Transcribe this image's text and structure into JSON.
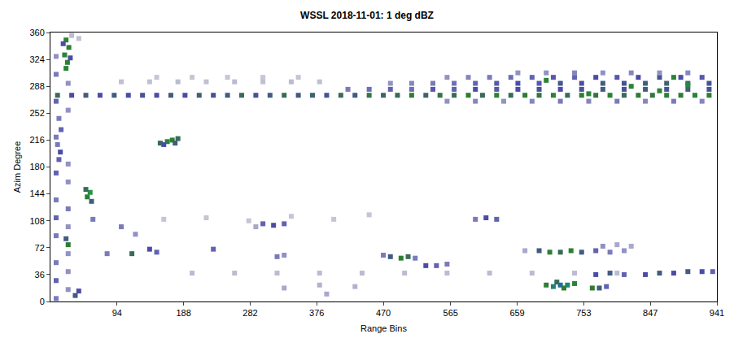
{
  "chart_data": {
    "type": "scatter",
    "title": "WSSL 2018-11-01: 1 deg dBZ",
    "x_label": "Range Bins",
    "y_label": "Azim Degree",
    "xlim": [
      0,
      941
    ],
    "xticks": [
      94,
      188,
      282,
      376,
      470,
      565,
      659,
      753,
      847,
      941
    ],
    "ylim": [
      0,
      360
    ],
    "yticks": [
      0,
      36,
      72,
      108,
      144,
      180,
      216,
      252,
      288,
      324,
      360
    ],
    "zlim": [
      0,
      40
    ],
    "grid": false,
    "marker": "square",
    "points": [
      [
        10,
        276,
        22
      ],
      [
        30,
        276,
        18
      ],
      [
        50,
        276,
        20
      ],
      [
        70,
        276,
        18
      ],
      [
        90,
        276,
        20
      ],
      [
        110,
        276,
        18
      ],
      [
        130,
        276,
        19
      ],
      [
        150,
        276,
        18
      ],
      [
        170,
        276,
        20
      ],
      [
        190,
        276,
        18
      ],
      [
        210,
        276,
        21
      ],
      [
        230,
        276,
        19
      ],
      [
        250,
        276,
        20
      ],
      [
        270,
        276,
        22
      ],
      [
        290,
        276,
        19
      ],
      [
        310,
        276,
        20
      ],
      [
        330,
        276,
        22
      ],
      [
        350,
        276,
        20
      ],
      [
        370,
        276,
        21
      ],
      [
        390,
        276,
        19
      ],
      [
        410,
        276,
        22
      ],
      [
        430,
        276,
        20
      ],
      [
        450,
        276,
        23
      ],
      [
        470,
        276,
        21
      ],
      [
        490,
        276,
        22
      ],
      [
        510,
        276,
        24
      ],
      [
        530,
        276,
        21
      ],
      [
        550,
        276,
        23
      ],
      [
        570,
        276,
        22
      ],
      [
        590,
        276,
        24
      ],
      [
        610,
        276,
        22
      ],
      [
        630,
        276,
        25
      ],
      [
        650,
        276,
        22
      ],
      [
        670,
        276,
        24
      ],
      [
        690,
        276,
        23
      ],
      [
        710,
        276,
        25
      ],
      [
        730,
        276,
        22
      ],
      [
        750,
        276,
        24
      ],
      [
        770,
        276,
        23
      ],
      [
        790,
        276,
        25
      ],
      [
        810,
        276,
        22
      ],
      [
        830,
        276,
        24
      ],
      [
        850,
        276,
        23
      ],
      [
        870,
        276,
        25
      ],
      [
        890,
        276,
        24
      ],
      [
        910,
        276,
        26
      ],
      [
        930,
        276,
        24
      ],
      [
        420,
        284,
        14
      ],
      [
        450,
        284,
        15
      ],
      [
        480,
        284,
        16
      ],
      [
        510,
        284,
        15
      ],
      [
        540,
        284,
        17
      ],
      [
        570,
        284,
        16
      ],
      [
        600,
        284,
        18
      ],
      [
        630,
        284,
        17
      ],
      [
        660,
        284,
        18
      ],
      [
        690,
        284,
        19
      ],
      [
        720,
        284,
        18
      ],
      [
        750,
        284,
        19
      ],
      [
        780,
        284,
        20
      ],
      [
        810,
        284,
        19
      ],
      [
        840,
        284,
        20
      ],
      [
        870,
        284,
        19
      ],
      [
        900,
        284,
        20
      ],
      [
        930,
        284,
        19
      ],
      [
        480,
        292,
        12
      ],
      [
        510,
        292,
        13
      ],
      [
        540,
        292,
        14
      ],
      [
        570,
        292,
        15
      ],
      [
        600,
        292,
        16
      ],
      [
        630,
        292,
        17
      ],
      [
        660,
        292,
        18
      ],
      [
        690,
        292,
        17
      ],
      [
        720,
        292,
        19
      ],
      [
        750,
        292,
        18
      ],
      [
        780,
        292,
        20
      ],
      [
        810,
        292,
        19
      ],
      [
        840,
        292,
        20
      ],
      [
        870,
        292,
        21
      ],
      [
        900,
        292,
        20
      ],
      [
        930,
        292,
        19
      ],
      [
        560,
        300,
        12
      ],
      [
        590,
        300,
        13
      ],
      [
        620,
        300,
        14
      ],
      [
        650,
        300,
        15
      ],
      [
        680,
        300,
        16
      ],
      [
        710,
        300,
        17
      ],
      [
        740,
        300,
        16
      ],
      [
        770,
        300,
        18
      ],
      [
        800,
        300,
        17
      ],
      [
        830,
        300,
        18
      ],
      [
        860,
        300,
        19
      ],
      [
        890,
        300,
        18
      ],
      [
        920,
        300,
        17
      ],
      [
        660,
        306,
        12
      ],
      [
        700,
        306,
        12
      ],
      [
        740,
        306,
        13
      ],
      [
        780,
        306,
        12
      ],
      [
        820,
        306,
        13
      ],
      [
        860,
        306,
        12
      ],
      [
        900,
        306,
        13
      ],
      [
        560,
        268,
        12
      ],
      [
        600,
        268,
        13
      ],
      [
        640,
        268,
        12
      ],
      [
        680,
        268,
        13
      ],
      [
        720,
        268,
        14
      ],
      [
        760,
        268,
        13
      ],
      [
        800,
        268,
        14
      ],
      [
        840,
        268,
        13
      ],
      [
        880,
        268,
        14
      ],
      [
        920,
        268,
        13
      ],
      [
        820,
        288,
        26
      ],
      [
        860,
        282,
        26
      ],
      [
        900,
        290,
        27
      ],
      [
        760,
        278,
        26
      ],
      [
        700,
        296,
        25
      ],
      [
        880,
        300,
        25
      ],
      [
        100,
        294,
        5
      ],
      [
        140,
        294,
        5
      ],
      [
        180,
        294,
        6
      ],
      [
        220,
        294,
        5
      ],
      [
        260,
        294,
        6
      ],
      [
        300,
        294,
        5
      ],
      [
        340,
        294,
        6
      ],
      [
        380,
        294,
        5
      ],
      [
        150,
        300,
        4
      ],
      [
        200,
        300,
        4
      ],
      [
        250,
        300,
        4
      ],
      [
        300,
        300,
        4
      ],
      [
        350,
        300,
        4
      ],
      [
        8,
        4,
        14
      ],
      [
        25,
        16,
        12
      ],
      [
        8,
        28,
        16
      ],
      [
        25,
        40,
        12
      ],
      [
        8,
        52,
        14
      ],
      [
        25,
        64,
        12
      ],
      [
        8,
        88,
        14
      ],
      [
        25,
        100,
        12
      ],
      [
        8,
        112,
        16
      ],
      [
        25,
        124,
        14
      ],
      [
        8,
        136,
        14
      ],
      [
        25,
        160,
        12
      ],
      [
        8,
        172,
        16
      ],
      [
        25,
        184,
        12
      ],
      [
        8,
        220,
        14
      ],
      [
        25,
        256,
        12
      ],
      [
        8,
        268,
        16
      ],
      [
        25,
        292,
        12
      ],
      [
        8,
        304,
        14
      ],
      [
        8,
        328,
        12
      ],
      [
        22,
        312,
        26
      ],
      [
        24,
        320,
        25
      ],
      [
        20,
        330,
        26
      ],
      [
        26,
        340,
        24
      ],
      [
        22,
        350,
        25
      ],
      [
        28,
        326,
        18
      ],
      [
        18,
        345,
        18
      ],
      [
        30,
        356,
        6
      ],
      [
        40,
        352,
        5
      ],
      [
        25,
        76,
        24
      ],
      [
        22,
        84,
        20
      ],
      [
        52,
        140,
        24
      ],
      [
        56,
        146,
        30
      ],
      [
        50,
        150,
        22
      ],
      [
        58,
        134,
        20
      ],
      [
        12,
        190,
        16
      ],
      [
        14,
        200,
        18
      ],
      [
        10,
        210,
        14
      ],
      [
        15,
        230,
        16
      ],
      [
        12,
        245,
        14
      ],
      [
        35,
        8,
        20
      ],
      [
        40,
        14,
        18
      ],
      [
        140,
        70,
        18
      ],
      [
        150,
        66,
        16
      ],
      [
        230,
        70,
        16
      ],
      [
        100,
        100,
        14
      ],
      [
        115,
        64,
        22
      ],
      [
        120,
        90,
        12
      ],
      [
        60,
        110,
        14
      ],
      [
        80,
        64,
        14
      ],
      [
        155,
        212,
        22
      ],
      [
        165,
        214,
        26
      ],
      [
        172,
        216,
        24
      ],
      [
        180,
        218,
        22
      ],
      [
        160,
        210,
        18
      ],
      [
        176,
        212,
        20
      ],
      [
        290,
        100,
        10
      ],
      [
        300,
        104,
        16
      ],
      [
        315,
        102,
        18
      ],
      [
        330,
        104,
        16
      ],
      [
        320,
        60,
        14
      ],
      [
        330,
        62,
        12
      ],
      [
        470,
        62,
        14
      ],
      [
        480,
        60,
        20
      ],
      [
        495,
        58,
        24
      ],
      [
        505,
        60,
        22
      ],
      [
        515,
        58,
        14
      ],
      [
        530,
        48,
        18
      ],
      [
        545,
        48,
        16
      ],
      [
        560,
        50,
        14
      ],
      [
        600,
        110,
        14
      ],
      [
        615,
        112,
        18
      ],
      [
        630,
        110,
        16
      ],
      [
        670,
        68,
        10
      ],
      [
        690,
        68,
        20
      ],
      [
        705,
        66,
        24
      ],
      [
        720,
        66,
        22
      ],
      [
        735,
        68,
        24
      ],
      [
        750,
        66,
        20
      ],
      [
        770,
        68,
        16
      ],
      [
        790,
        66,
        14
      ],
      [
        810,
        68,
        12
      ],
      [
        780,
        74,
        12
      ],
      [
        800,
        76,
        10
      ],
      [
        820,
        74,
        10
      ],
      [
        330,
        18,
        10
      ],
      [
        380,
        22,
        8
      ],
      [
        430,
        20,
        8
      ],
      [
        390,
        10,
        10
      ],
      [
        700,
        22,
        24
      ],
      [
        710,
        20,
        34
      ],
      [
        720,
        22,
        36
      ],
      [
        730,
        22,
        34
      ],
      [
        740,
        24,
        26
      ],
      [
        715,
        26,
        22
      ],
      [
        725,
        18,
        24
      ],
      [
        765,
        18,
        24
      ],
      [
        775,
        18,
        20
      ],
      [
        785,
        20,
        16
      ],
      [
        770,
        36,
        18
      ],
      [
        790,
        38,
        20
      ],
      [
        810,
        36,
        16
      ],
      [
        840,
        36,
        18
      ],
      [
        860,
        38,
        20
      ],
      [
        880,
        38,
        18
      ],
      [
        900,
        40,
        20
      ],
      [
        920,
        40,
        18
      ],
      [
        935,
        40,
        16
      ],
      [
        200,
        38,
        6
      ],
      [
        260,
        38,
        6
      ],
      [
        320,
        38,
        6
      ],
      [
        380,
        38,
        6
      ],
      [
        440,
        38,
        6
      ],
      [
        500,
        38,
        6
      ],
      [
        560,
        38,
        6
      ],
      [
        620,
        38,
        6
      ],
      [
        680,
        38,
        6
      ],
      [
        740,
        38,
        6
      ],
      [
        800,
        38,
        6
      ],
      [
        160,
        110,
        4
      ],
      [
        220,
        112,
        4
      ],
      [
        280,
        108,
        4
      ],
      [
        340,
        114,
        4
      ],
      [
        400,
        110,
        4
      ],
      [
        450,
        116,
        4
      ]
    ]
  }
}
